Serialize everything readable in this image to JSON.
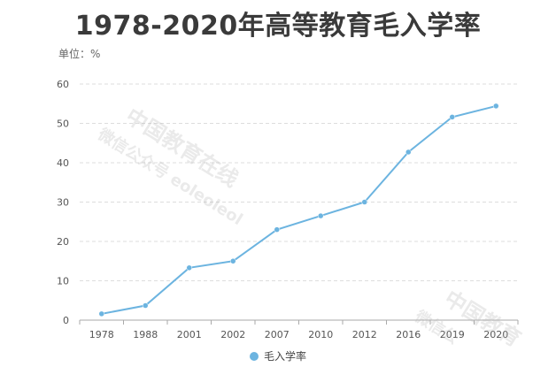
{
  "chart_data": {
    "type": "line",
    "title": "1978-2020年高等教育毛入学率",
    "unit_label": "单位：%",
    "categories": [
      "1978",
      "1988",
      "2001",
      "2002",
      "2007",
      "2010",
      "2012",
      "2016",
      "2019",
      "2020"
    ],
    "series": [
      {
        "name": "毛入学率",
        "values": [
          1.6,
          3.7,
          13.3,
          15.0,
          23.0,
          26.5,
          30.0,
          42.7,
          51.6,
          54.4
        ],
        "color": "#6cb4e0"
      }
    ],
    "yticks": [
      0,
      10,
      20,
      30,
      40,
      50,
      60
    ],
    "ylim": [
      0,
      60
    ],
    "grid": true,
    "legend_position": "bottom-center"
  },
  "watermark": {
    "line1": "中国教育在线",
    "line2": "微信公众号 eoleoleol",
    "line3": "中国教育",
    "line4": "微信公"
  }
}
